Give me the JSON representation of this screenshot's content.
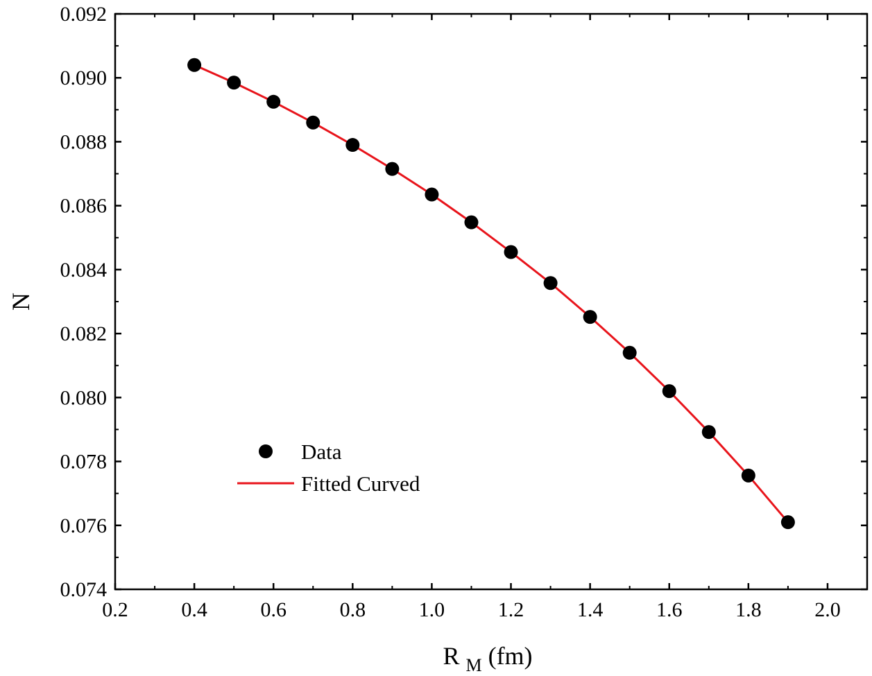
{
  "chart_data": {
    "type": "scatter",
    "xlabel": {
      "main": "R",
      "subscript": "M",
      "unit": " (fm)"
    },
    "ylabel": "N",
    "xlim": [
      0.2,
      2.1
    ],
    "ylim": [
      0.074,
      0.092
    ],
    "x_ticks": [
      "0.2",
      "0.4",
      "0.6",
      "0.8",
      "1.0",
      "1.2",
      "1.4",
      "1.6",
      "1.8",
      "2.0"
    ],
    "y_ticks": [
      "0.074",
      "0.076",
      "0.078",
      "0.080",
      "0.082",
      "0.084",
      "0.086",
      "0.088",
      "0.090",
      "0.092"
    ],
    "grid": false,
    "legend_position": "lower-left",
    "series": [
      {
        "name": "Data",
        "kind": "scatter",
        "color": "#000000",
        "x": [
          0.4,
          0.5,
          0.6,
          0.7,
          0.8,
          0.9,
          1.0,
          1.1,
          1.2,
          1.3,
          1.4,
          1.5,
          1.6,
          1.7,
          1.8,
          1.9
        ],
        "y": [
          0.0904,
          0.08985,
          0.08925,
          0.0886,
          0.0879,
          0.08715,
          0.08635,
          0.08548,
          0.08455,
          0.08358,
          0.08252,
          0.0814,
          0.0802,
          0.07892,
          0.07756,
          0.0761
        ]
      },
      {
        "name": "Fitted Curved",
        "kind": "line",
        "color": "#e8141b",
        "x": [
          0.4,
          0.5,
          0.6,
          0.7,
          0.8,
          0.9,
          1.0,
          1.1,
          1.2,
          1.3,
          1.4,
          1.5,
          1.6,
          1.7,
          1.8,
          1.9
        ],
        "y": [
          0.0904,
          0.08985,
          0.08925,
          0.0886,
          0.0879,
          0.08715,
          0.08635,
          0.08548,
          0.08455,
          0.08358,
          0.08252,
          0.0814,
          0.0802,
          0.07892,
          0.07756,
          0.0761
        ]
      }
    ]
  }
}
